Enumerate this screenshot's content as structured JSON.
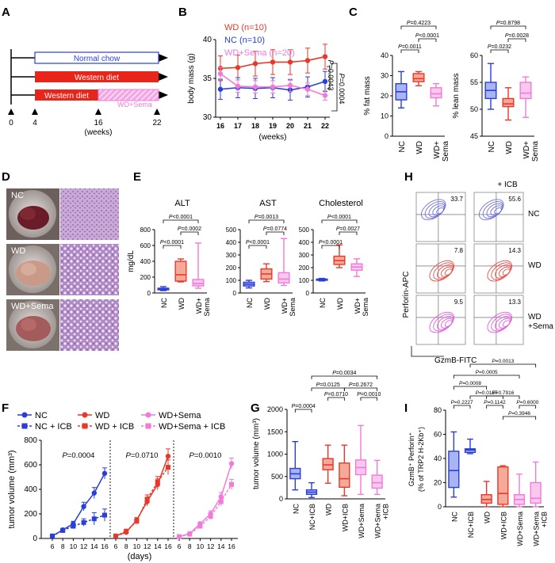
{
  "panels": {
    "A": {
      "letter": "A",
      "bars": [
        "Normal chow",
        "Western diet",
        "Western diet",
        "WD+Sema"
      ],
      "timepoints": [
        "0",
        "4",
        "16",
        "22"
      ],
      "unit": "(weeks)"
    },
    "D": {
      "letter": "D",
      "labels": [
        "NC",
        "WD",
        "WD+Sema"
      ]
    },
    "H": {
      "letter": "H",
      "title": "+ ICB",
      "row_labels": [
        "NC",
        "WD",
        "WD\n+Sema"
      ],
      "row_label_lines": [
        [
          "NC"
        ],
        [
          "WD"
        ],
        [
          "WD",
          "+Sema"
        ]
      ],
      "values": [
        [
          "33.7",
          "55.6"
        ],
        [
          "7.8",
          "14.3"
        ],
        [
          "9.5",
          "13.3"
        ]
      ],
      "ylabel": "Perforin-APC",
      "xlabel": "GzmB-FITC",
      "colors": [
        "#6f6fe0",
        "#e8504a",
        "#e060e0"
      ]
    }
  },
  "chart_data": [
    {
      "panel": "B",
      "type": "line",
      "x": [
        16,
        17,
        18,
        19,
        20,
        21,
        22
      ],
      "xlabel": "(weeks)",
      "ylabel": "body mass (g)",
      "ylim": [
        30,
        40
      ],
      "yticks": [
        "30",
        "35",
        "40"
      ],
      "series": [
        {
          "name": "WD (n=10)",
          "color": "#e8382a",
          "values": [
            36.3,
            36.4,
            36.9,
            37.1,
            37.1,
            37.3,
            37.8
          ],
          "err": [
            1.6,
            1.6,
            1.6,
            1.6,
            1.6,
            1.6,
            1.6
          ]
        },
        {
          "name": "NC (n=10)",
          "color": "#2a3fd8",
          "values": [
            33.6,
            33.8,
            33.7,
            33.8,
            33.5,
            33.9,
            34.6
          ],
          "err": [
            1.3,
            1.3,
            1.3,
            1.3,
            1.3,
            1.3,
            1.3
          ]
        },
        {
          "name": "WD+Sema (n=20)",
          "color": "#f07bd8",
          "values": [
            35.6,
            34.0,
            33.9,
            33.9,
            34.1,
            33.6,
            32.8
          ],
          "err": [
            0.8,
            0.8,
            0.8,
            0.8,
            0.8,
            0.8,
            0.6
          ]
        }
      ],
      "annotations": [
        "P=0.0043",
        "P=0.0004"
      ]
    },
    {
      "panel": "C-fat",
      "type": "box",
      "ylabel": "% fat mass",
      "ylim": [
        0,
        40
      ],
      "yticks": [
        "0",
        "10",
        "20",
        "30",
        "40"
      ],
      "categories": [
        "NC",
        "WD",
        "WD+\nSema"
      ],
      "category_lines": [
        [
          "NC"
        ],
        [
          "WD"
        ],
        [
          "WD+",
          "Sema"
        ]
      ],
      "boxes": [
        {
          "min": 14,
          "q1": 18,
          "med": 22,
          "q3": 26,
          "max": 32,
          "color": "#2a3fd8"
        },
        {
          "min": 25,
          "q1": 27,
          "med": 28.5,
          "q3": 31,
          "max": 32,
          "color": "#e8382a"
        },
        {
          "min": 15,
          "q1": 19,
          "med": 21,
          "q3": 24,
          "max": 26,
          "color": "#f07bd8"
        }
      ],
      "brackets": [
        {
          "a": 0,
          "b": 1,
          "label": "P=0.0011"
        },
        {
          "a": 1,
          "b": 2,
          "label": "P<0.0001"
        },
        {
          "a": 0,
          "b": 2,
          "label": "P=0.4223"
        }
      ]
    },
    {
      "panel": "C-lean",
      "type": "box",
      "ylabel": "% lean mass",
      "ylim": [
        45,
        60
      ],
      "yticks": [
        "45",
        "50",
        "55",
        "60"
      ],
      "categories": [
        "NC",
        "WD",
        "WD+\nSema"
      ],
      "category_lines": [
        [
          "NC"
        ],
        [
          "WD"
        ],
        [
          "WD+",
          "Sema"
        ]
      ],
      "boxes": [
        {
          "min": 50,
          "q1": 52,
          "med": 53.5,
          "q3": 55,
          "max": 58.5,
          "color": "#2a3fd8"
        },
        {
          "min": 48,
          "q1": 50.5,
          "med": 51,
          "q3": 52,
          "max": 54,
          "color": "#e8382a"
        },
        {
          "min": 48.5,
          "q1": 52,
          "med": 53,
          "q3": 55,
          "max": 56,
          "color": "#f07bd8"
        }
      ],
      "brackets": [
        {
          "a": 0,
          "b": 1,
          "label": "P=0.0232"
        },
        {
          "a": 1,
          "b": 2,
          "label": "P=0.0028"
        },
        {
          "a": 0,
          "b": 2,
          "label": "P=0.8798"
        }
      ]
    },
    {
      "panel": "E-ALT",
      "type": "box",
      "title": "ALT",
      "ylabel": "mg/dL",
      "ylim": [
        0,
        800
      ],
      "yticks": [
        "0",
        "200",
        "400",
        "600",
        "800"
      ],
      "categories": [
        "NC",
        "WD",
        "WD+\nSema"
      ],
      "category_lines": [
        [
          "NC"
        ],
        [
          "WD"
        ],
        [
          "WD+",
          "Sema"
        ]
      ],
      "boxes": [
        {
          "min": 30,
          "q1": 40,
          "med": 50,
          "q3": 60,
          "max": 80,
          "color": "#2a3fd8"
        },
        {
          "min": 140,
          "q1": 150,
          "med": 230,
          "q3": 400,
          "max": 430,
          "color": "#e8382a"
        },
        {
          "min": 60,
          "q1": 90,
          "med": 120,
          "q3": 170,
          "max": 630,
          "color": "#f07bd8"
        }
      ],
      "brackets": [
        {
          "a": 0,
          "b": 1,
          "label": "P<0.0001"
        },
        {
          "a": 1,
          "b": 2,
          "label": "P=0.0002"
        },
        {
          "a": 0,
          "b": 2,
          "label": "P<0.0001"
        }
      ]
    },
    {
      "panel": "E-AST",
      "type": "box",
      "title": "AST",
      "ylim": [
        0,
        500
      ],
      "yticks": [
        "0",
        "100",
        "200",
        "300",
        "400",
        "500"
      ],
      "categories": [
        "NC",
        "WD",
        "WD+\nSema"
      ],
      "category_lines": [
        [
          "NC"
        ],
        [
          "WD"
        ],
        [
          "WD+",
          "Sema"
        ]
      ],
      "boxes": [
        {
          "min": 40,
          "q1": 55,
          "med": 70,
          "q3": 85,
          "max": 100,
          "color": "#2a3fd8"
        },
        {
          "min": 90,
          "q1": 110,
          "med": 150,
          "q3": 190,
          "max": 230,
          "color": "#e8382a"
        },
        {
          "min": 60,
          "q1": 80,
          "med": 110,
          "q3": 160,
          "max": 430,
          "color": "#f07bd8"
        }
      ],
      "brackets": [
        {
          "a": 0,
          "b": 1,
          "label": "P<0.0001"
        },
        {
          "a": 1,
          "b": 2,
          "label": "P=0.0774"
        },
        {
          "a": 0,
          "b": 2,
          "label": "P=0.0013"
        }
      ]
    },
    {
      "panel": "E-Chol",
      "type": "box",
      "title": "Cholesterol",
      "ylim": [
        0,
        500
      ],
      "yticks": [
        "0",
        "100",
        "200",
        "300",
        "400",
        "500"
      ],
      "categories": [
        "NC",
        "WD",
        "WD+\nSema"
      ],
      "category_lines": [
        [
          "NC"
        ],
        [
          "WD"
        ],
        [
          "WD+",
          "Sema"
        ]
      ],
      "boxes": [
        {
          "min": 95,
          "q1": 100,
          "med": 105,
          "q3": 110,
          "max": 115,
          "color": "#2a3fd8"
        },
        {
          "min": 200,
          "q1": 225,
          "med": 255,
          "q3": 290,
          "max": 380,
          "color": "#e8382a"
        },
        {
          "min": 130,
          "q1": 180,
          "med": 205,
          "q3": 230,
          "max": 270,
          "color": "#f07bd8"
        }
      ],
      "brackets": [
        {
          "a": 0,
          "b": 1,
          "label": "P<0.0001"
        },
        {
          "a": 1,
          "b": 2,
          "label": "P=0.0027"
        },
        {
          "a": 0,
          "b": 2,
          "label": "P<0.0001"
        }
      ]
    },
    {
      "panel": "F",
      "type": "line",
      "ylabel": "tumor volume (mm³)",
      "xlabel": "(days)",
      "ylim": [
        0,
        800
      ],
      "yticks": [
        "0",
        "200",
        "400",
        "600",
        "800"
      ],
      "x": [
        6,
        8,
        10,
        12,
        14,
        16
      ],
      "xticks": [
        "6",
        "8",
        "10",
        "12",
        "14",
        "16"
      ],
      "legend": [
        {
          "name": "NC",
          "color": "#2a3fd8",
          "dashed": false,
          "marker": "circle"
        },
        {
          "name": "NC + ICB",
          "color": "#2a3fd8",
          "dashed": true,
          "marker": "square"
        },
        {
          "name": "WD",
          "color": "#e8382a",
          "dashed": false,
          "marker": "circle"
        },
        {
          "name": "WD + ICB",
          "color": "#e8382a",
          "dashed": true,
          "marker": "square"
        },
        {
          "name": "WD+Sema",
          "color": "#f07bd8",
          "dashed": false,
          "marker": "circle"
        },
        {
          "name": "WD+Sema + ICB",
          "color": "#f07bd8",
          "dashed": true,
          "marker": "square"
        }
      ],
      "groups": [
        {
          "pval": "P=0.0004",
          "series": [
            {
              "color": "#2a3fd8",
              "dashed": false,
              "marker": "circle",
              "values": [
                20,
                70,
                120,
                260,
                370,
                530
              ],
              "err": [
                5,
                12,
                20,
                35,
                45,
                45
              ]
            },
            {
              "color": "#2a3fd8",
              "dashed": true,
              "marker": "square",
              "values": [
                20,
                65,
                100,
                130,
                160,
                190
              ],
              "err": [
                5,
                10,
                20,
                30,
                50,
                50
              ]
            }
          ]
        },
        {
          "pval": "P=0.0710",
          "series": [
            {
              "color": "#e8382a",
              "dashed": false,
              "marker": "circle",
              "values": [
                20,
                50,
                150,
                300,
                440,
                670
              ],
              "err": [
                5,
                10,
                20,
                35,
                45,
                60
              ]
            },
            {
              "color": "#e8382a",
              "dashed": true,
              "marker": "square",
              "values": [
                20,
                60,
                140,
                320,
                460,
                580
              ],
              "err": [
                5,
                10,
                20,
                35,
                45,
                60
              ]
            }
          ]
        },
        {
          "pval": "P=0.0010",
          "series": [
            {
              "color": "#f07bd8",
              "dashed": false,
              "marker": "circle",
              "values": [
                15,
                40,
                120,
                200,
                340,
                610
              ],
              "err": [
                5,
                8,
                15,
                25,
                35,
                45
              ]
            },
            {
              "color": "#f07bd8",
              "dashed": true,
              "marker": "square",
              "values": [
                15,
                35,
                100,
                180,
                300,
                440
              ],
              "err": [
                5,
                8,
                15,
                25,
                35,
                40
              ]
            }
          ]
        }
      ]
    },
    {
      "panel": "G",
      "type": "box",
      "ylabel": "tumor volume (mm³)",
      "ylim": [
        0,
        2000
      ],
      "yticks": [
        "0",
        "500",
        "1000",
        "1500",
        "2000"
      ],
      "categories": [
        "NC",
        "NC+ICB",
        "WD",
        "WD+ICB",
        "WD+Sema",
        "WD+Sema\n+ICB"
      ],
      "category_lines": [
        [
          "NC"
        ],
        [
          "NC+ICB"
        ],
        [
          "WD"
        ],
        [
          "WD+ICB"
        ],
        [
          "WD+Sema"
        ],
        [
          "WD+Sema",
          "+ICB"
        ]
      ],
      "boxes": [
        {
          "min": 200,
          "q1": 450,
          "med": 560,
          "q3": 680,
          "max": 1280,
          "color": "#2a3fd8"
        },
        {
          "min": 30,
          "q1": 100,
          "med": 150,
          "q3": 200,
          "max": 360,
          "color": "#2a3fd8"
        },
        {
          "min": 350,
          "q1": 650,
          "med": 760,
          "q3": 900,
          "max": 1200,
          "color": "#e8382a"
        },
        {
          "min": 70,
          "q1": 260,
          "med": 450,
          "q3": 800,
          "max": 1200,
          "color": "#e8382a"
        },
        {
          "min": 100,
          "q1": 540,
          "med": 700,
          "q3": 870,
          "max": 1640,
          "color": "#f07bd8"
        },
        {
          "min": 100,
          "q1": 240,
          "med": 360,
          "q3": 530,
          "max": 860,
          "color": "#f07bd8"
        }
      ],
      "brackets": [
        {
          "a": 0,
          "b": 1,
          "label": "P=0.0004"
        },
        {
          "a": 2,
          "b": 3,
          "label": "P=0.0710"
        },
        {
          "a": 4,
          "b": 5,
          "label": "P=0.0010"
        },
        {
          "a": 1,
          "b": 3,
          "label": "P=0.0125"
        },
        {
          "a": 3,
          "b": 5,
          "label": "P=0.2672"
        },
        {
          "a": 1,
          "b": 5,
          "label": "P=0.0034"
        }
      ]
    },
    {
      "panel": "I",
      "type": "box",
      "ylabel": "GzmB⁺ Perforin⁺",
      "ylabel2": "(% of TRP2 H-2Kb⁺)",
      "ylim": [
        0,
        80
      ],
      "yticks": [
        "0",
        "20",
        "40",
        "60",
        "80"
      ],
      "categories": [
        "NC",
        "NC+ICB",
        "WD",
        "WD+ICB",
        "WD+Sema",
        "WD+Sema\n+ICB"
      ],
      "category_lines": [
        [
          "NC"
        ],
        [
          "NC+ICB"
        ],
        [
          "WD"
        ],
        [
          "WD+ICB"
        ],
        [
          "WD+Sema"
        ],
        [
          "WD+Sema",
          "+ICB"
        ]
      ],
      "boxes": [
        {
          "min": 8,
          "q1": 16,
          "med": 30,
          "q3": 46,
          "max": 62,
          "color": "#2a3fd8"
        },
        {
          "min": 44,
          "q1": 45,
          "med": 47,
          "q3": 48,
          "max": 56,
          "color": "#2a3fd8"
        },
        {
          "min": 0,
          "q1": 3,
          "med": 6,
          "q3": 10,
          "max": 21,
          "color": "#e8382a"
        },
        {
          "min": 0,
          "q1": 2,
          "med": 11,
          "q3": 33,
          "max": 34,
          "color": "#e8382a"
        },
        {
          "min": 0,
          "q1": 2,
          "med": 6,
          "q3": 10,
          "max": 27,
          "color": "#f07bd8"
        },
        {
          "min": 0,
          "q1": 3,
          "med": 7,
          "q3": 20,
          "max": 37,
          "color": "#f07bd8"
        }
      ],
      "brackets": [
        {
          "a": 0,
          "b": 1,
          "label": "P=0.2227"
        },
        {
          "a": 2,
          "b": 3,
          "label": "P=0.1142"
        },
        {
          "a": 4,
          "b": 5,
          "label": "P=0.6000"
        },
        {
          "a": 3,
          "b": 5,
          "label": "P=0.3946"
        },
        {
          "a": 1,
          "b": 3,
          "label": "P=0.0167"
        },
        {
          "a": 2,
          "b": 4,
          "label": "P=0.7916"
        },
        {
          "a": 0,
          "b": 2,
          "label": "P=0.0008"
        },
        {
          "a": 0,
          "b": 4,
          "label": "P=0.0005"
        },
        {
          "a": 1,
          "b": 5,
          "label": "P=0.0013"
        }
      ]
    }
  ]
}
